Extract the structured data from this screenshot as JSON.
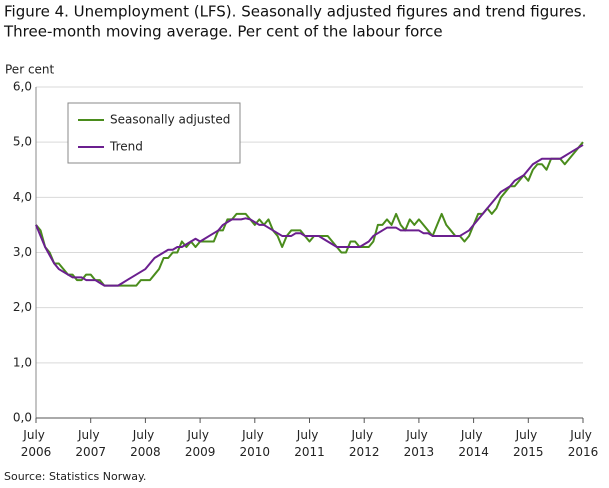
{
  "chart_data": {
    "type": "line",
    "title": "Figure 4. Unemployment (LFS). Seasonally adjusted figures and trend figures.",
    "subtitle": "Three-month moving average. Per cent of the labour force",
    "y_label": "Per cent",
    "source": "Source: Statistics Norway.",
    "categories": [
      "July 2006",
      null,
      null,
      null,
      null,
      null,
      null,
      null,
      null,
      null,
      null,
      null,
      "July 2007",
      null,
      null,
      null,
      null,
      null,
      null,
      null,
      null,
      null,
      null,
      null,
      "July 2008",
      null,
      null,
      null,
      null,
      null,
      null,
      null,
      null,
      null,
      null,
      null,
      "July 2009",
      null,
      null,
      null,
      null,
      null,
      null,
      null,
      null,
      null,
      null,
      null,
      "July 2010",
      null,
      null,
      null,
      null,
      null,
      null,
      null,
      null,
      null,
      null,
      null,
      "July 2011",
      null,
      null,
      null,
      null,
      null,
      null,
      null,
      null,
      null,
      null,
      null,
      "July 2012",
      null,
      null,
      null,
      null,
      null,
      null,
      null,
      null,
      null,
      null,
      null,
      "July 2013",
      null,
      null,
      null,
      null,
      null,
      null,
      null,
      null,
      null,
      null,
      null,
      "July 2014",
      null,
      null,
      null,
      null,
      null,
      null,
      null,
      null,
      null,
      null,
      null,
      "July 2015",
      null,
      null,
      null,
      null,
      null,
      null,
      null,
      null,
      null,
      null,
      null,
      "July 2016"
    ],
    "series": [
      {
        "name": "Seasonally adjusted",
        "color": "#4a8c1c",
        "values": [
          3.5,
          3.4,
          3.1,
          3.0,
          2.8,
          2.8,
          2.7,
          2.6,
          2.6,
          2.5,
          2.5,
          2.6,
          2.6,
          2.5,
          2.5,
          2.4,
          2.4,
          2.4,
          2.4,
          2.4,
          2.4,
          2.4,
          2.4,
          2.5,
          2.5,
          2.5,
          2.6,
          2.7,
          2.9,
          2.9,
          3.0,
          3.0,
          3.2,
          3.1,
          3.2,
          3.1,
          3.2,
          3.2,
          3.2,
          3.2,
          3.4,
          3.4,
          3.6,
          3.6,
          3.7,
          3.7,
          3.7,
          3.6,
          3.5,
          3.6,
          3.5,
          3.6,
          3.4,
          3.3,
          3.1,
          3.3,
          3.4,
          3.4,
          3.4,
          3.3,
          3.2,
          3.3,
          3.3,
          3.3,
          3.3,
          3.2,
          3.1,
          3.0,
          3.0,
          3.2,
          3.2,
          3.1,
          3.1,
          3.1,
          3.2,
          3.5,
          3.5,
          3.6,
          3.5,
          3.7,
          3.5,
          3.4,
          3.6,
          3.5,
          3.6,
          3.5,
          3.4,
          3.3,
          3.5,
          3.7,
          3.5,
          3.4,
          3.3,
          3.3,
          3.2,
          3.3,
          3.5,
          3.7,
          3.7,
          3.8,
          3.7,
          3.8,
          4.0,
          4.1,
          4.2,
          4.2,
          4.3,
          4.4,
          4.3,
          4.5,
          4.6,
          4.6,
          4.5,
          4.7,
          4.7,
          4.7,
          4.6,
          4.7,
          4.8,
          4.9,
          5.0
        ]
      },
      {
        "name": "Trend",
        "color": "#6b1f8f",
        "values": [
          3.5,
          3.3,
          3.1,
          2.95,
          2.8,
          2.7,
          2.65,
          2.6,
          2.55,
          2.55,
          2.55,
          2.5,
          2.5,
          2.5,
          2.45,
          2.4,
          2.4,
          2.4,
          2.4,
          2.45,
          2.5,
          2.55,
          2.6,
          2.65,
          2.7,
          2.8,
          2.9,
          2.95,
          3.0,
          3.05,
          3.05,
          3.1,
          3.1,
          3.15,
          3.2,
          3.25,
          3.2,
          3.25,
          3.3,
          3.35,
          3.4,
          3.5,
          3.55,
          3.6,
          3.6,
          3.6,
          3.62,
          3.6,
          3.55,
          3.5,
          3.5,
          3.45,
          3.4,
          3.35,
          3.3,
          3.3,
          3.3,
          3.35,
          3.35,
          3.3,
          3.3,
          3.3,
          3.3,
          3.25,
          3.2,
          3.15,
          3.1,
          3.1,
          3.1,
          3.1,
          3.1,
          3.1,
          3.15,
          3.2,
          3.3,
          3.35,
          3.4,
          3.45,
          3.45,
          3.45,
          3.4,
          3.4,
          3.4,
          3.4,
          3.4,
          3.35,
          3.35,
          3.3,
          3.3,
          3.3,
          3.3,
          3.3,
          3.3,
          3.3,
          3.35,
          3.4,
          3.5,
          3.6,
          3.7,
          3.8,
          3.9,
          4.0,
          4.1,
          4.15,
          4.2,
          4.3,
          4.35,
          4.4,
          4.5,
          4.6,
          4.65,
          4.7,
          4.7,
          4.7,
          4.7,
          4.7,
          4.75,
          4.8,
          4.85,
          4.9,
          4.95
        ]
      }
    ],
    "ylim": [
      0,
      6
    ],
    "yticks": [
      {
        "value": 0,
        "label": "0,0"
      },
      {
        "value": 1,
        "label": "1,0"
      },
      {
        "value": 2,
        "label": "2,0"
      },
      {
        "value": 3,
        "label": "3,0"
      },
      {
        "value": 4,
        "label": "4,0"
      },
      {
        "value": 5,
        "label": "5,0"
      },
      {
        "value": 6,
        "label": "6,0"
      }
    ],
    "grid": true,
    "legend": "top-left"
  }
}
